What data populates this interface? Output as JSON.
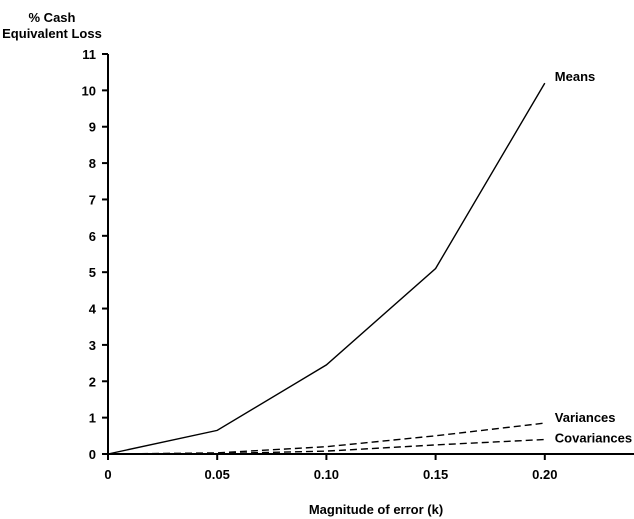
{
  "chart_data": {
    "type": "line",
    "ylabel_line1": "% Cash",
    "ylabel_line2": "Equivalent Loss",
    "xlabel": "Magnitude of error (k)",
    "x": [
      0,
      0.05,
      0.1,
      0.15,
      0.2
    ],
    "x_tick_labels": [
      "0",
      "0.05",
      "0.10",
      "0.15",
      "0.20"
    ],
    "y_tick_labels": [
      "0",
      "1",
      "2",
      "3",
      "4",
      "5",
      "6",
      "7",
      "8",
      "9",
      "10",
      "11"
    ],
    "xlim": [
      0,
      0.25
    ],
    "ylim": [
      0,
      11
    ],
    "grid": false,
    "series": [
      {
        "name": "Means",
        "values": [
          0,
          0.65,
          2.45,
          5.1,
          10.2
        ],
        "style": "solid"
      },
      {
        "name": "Variances",
        "values": [
          0,
          0.03,
          0.2,
          0.5,
          0.85
        ],
        "style": "dashed"
      },
      {
        "name": "Covariances",
        "values": [
          0,
          0.01,
          0.08,
          0.25,
          0.4
        ],
        "style": "dashed"
      }
    ]
  }
}
